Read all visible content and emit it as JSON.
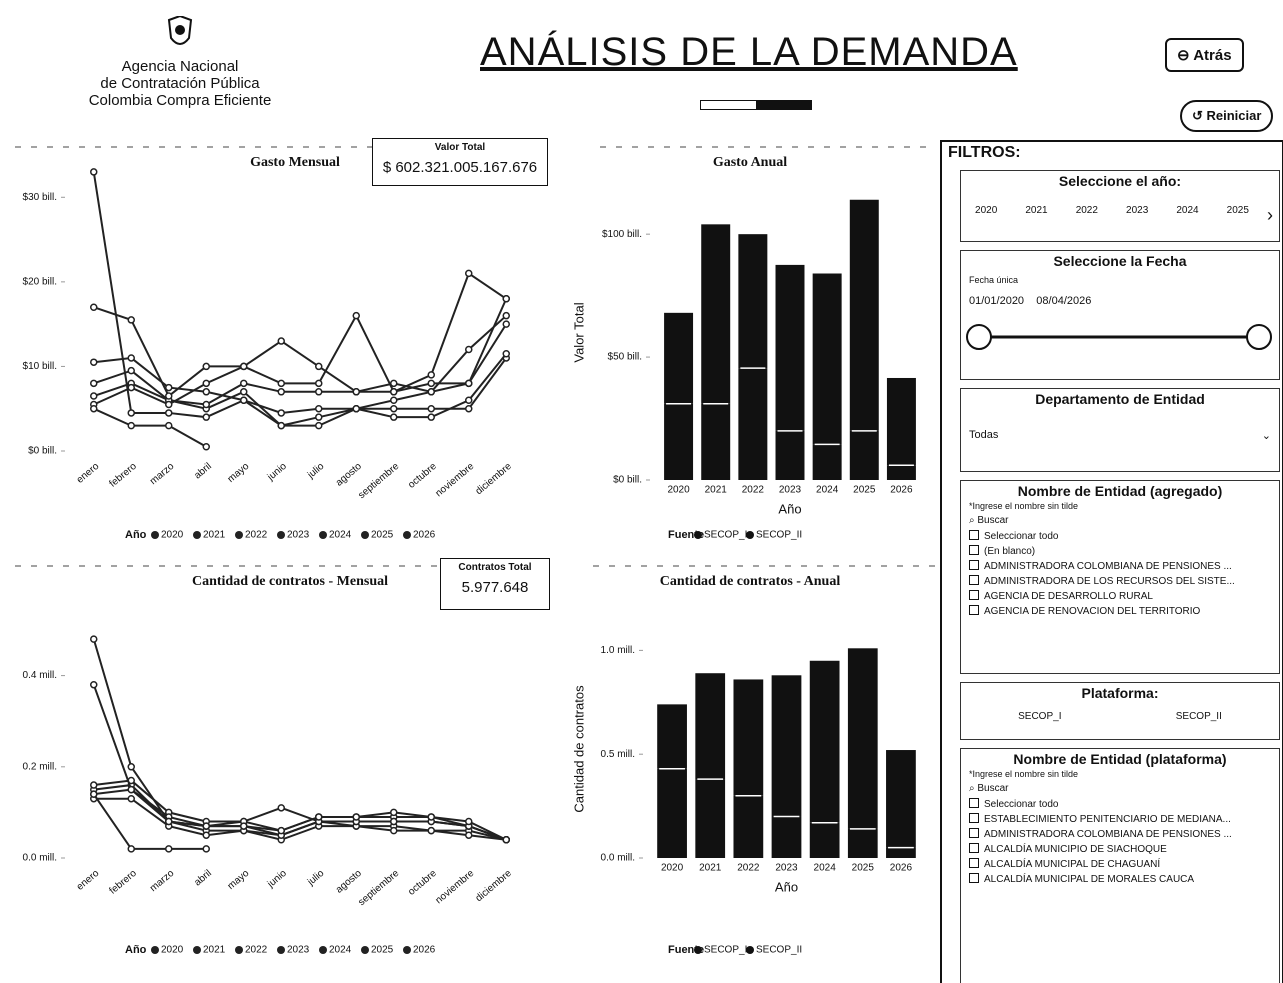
{
  "header": {
    "logo_lines": [
      "Agencia Nacional",
      "de Contratación Pública",
      "Colombia Compra Eficiente"
    ],
    "title": "ANÁLISIS DE LA DEMANDA",
    "back_button": "Atrás",
    "reset_button": "Reiniciar"
  },
  "cards": [
    {
      "label": "Valor Total",
      "value": "$ 602.321.005.167.676"
    },
    {
      "label": "Contratos Total",
      "value": "5.977.648"
    }
  ],
  "chart_data": [
    {
      "type": "line",
      "title": "Gasto Mensual",
      "legend_title": "Año",
      "categories": [
        "enero",
        "febrero",
        "marzo",
        "abril",
        "mayo",
        "junio",
        "julio",
        "agosto",
        "septiembre",
        "octubre",
        "noviembre",
        "diciembre"
      ],
      "series": [
        {
          "name": "2020",
          "color": "#222222",
          "values": [
            6.5,
            8,
            6,
            5,
            7,
            3,
            4,
            5,
            5,
            5,
            5,
            11
          ]
        },
        {
          "name": "2021",
          "color": "#222222",
          "values": [
            33,
            4.5,
            4.5,
            4,
            6,
            3,
            3,
            5,
            4,
            4,
            6,
            11.5
          ]
        },
        {
          "name": "2022",
          "color": "#222222",
          "values": [
            10.5,
            11,
            7.5,
            7,
            6,
            4.5,
            5,
            5,
            6,
            7,
            12,
            16
          ]
        },
        {
          "name": "2023",
          "color": "#222222",
          "values": [
            8,
            9.5,
            6,
            5.5,
            8,
            7,
            7,
            7,
            7,
            8,
            8,
            15
          ]
        },
        {
          "name": "2024",
          "color": "#222222",
          "values": [
            5.5,
            7.5,
            5.5,
            8,
            10,
            8,
            8,
            16,
            7,
            9,
            21,
            18
          ]
        },
        {
          "name": "2025",
          "color": "#222222",
          "values": [
            17,
            15.5,
            6.5,
            10,
            10,
            13,
            10,
            7,
            8,
            7,
            8,
            18
          ]
        },
        {
          "name": "2026",
          "color": "#222222",
          "values": [
            5,
            3,
            3,
            0.5,
            null,
            null,
            null,
            null,
            null,
            null,
            null,
            null
          ]
        }
      ],
      "ylim": [
        0,
        35
      ],
      "yticks": [
        {
          "value": 0,
          "label": "$0 bill."
        },
        {
          "value": 10,
          "label": "$10 bill."
        },
        {
          "value": 20,
          "label": "$20 bill."
        },
        {
          "value": 30,
          "label": "$30 bill."
        }
      ]
    },
    {
      "type": "bar",
      "stacked": true,
      "title": "Gasto Anual",
      "xlabel": "Año",
      "ylabel": "Valor Total",
      "legend_title": "Fuente",
      "categories": [
        "2020",
        "2021",
        "2022",
        "2023",
        "2024",
        "2025",
        "2026"
      ],
      "series": [
        {
          "name": "SECOP_I",
          "color": "#111111",
          "values": [
            31,
            31,
            45.5,
            20,
            14.5,
            20,
            6
          ]
        },
        {
          "name": "SECOP_II",
          "color": "#111111",
          "values": [
            37,
            73,
            54.5,
            67.5,
            69.5,
            94,
            35.5
          ]
        }
      ],
      "ylim": [
        0,
        120
      ],
      "yticks": [
        {
          "value": 0,
          "label": "$0 bill."
        },
        {
          "value": 50,
          "label": "$50 bill."
        },
        {
          "value": 100,
          "label": "$100 bill."
        }
      ]
    },
    {
      "type": "line",
      "title": "Cantidad de contratos - Mensual",
      "legend_title": "Año",
      "categories": [
        "enero",
        "febrero",
        "marzo",
        "abril",
        "mayo",
        "junio",
        "julio",
        "agosto",
        "septiembre",
        "octubre",
        "noviembre",
        "diciembre"
      ],
      "series": [
        {
          "name": "2020",
          "color": "#222222",
          "values": [
            0.15,
            0.16,
            0.08,
            0.06,
            0.06,
            0.05,
            0.08,
            0.07,
            0.07,
            0.06,
            0.06,
            0.04
          ]
        },
        {
          "name": "2021",
          "color": "#222222",
          "values": [
            0.13,
            0.13,
            0.07,
            0.05,
            0.06,
            0.04,
            0.07,
            0.07,
            0.06,
            0.06,
            0.05,
            0.04
          ]
        },
        {
          "name": "2022",
          "color": "#222222",
          "values": [
            0.16,
            0.17,
            0.1,
            0.08,
            0.08,
            0.06,
            0.09,
            0.09,
            0.09,
            0.09,
            0.07,
            0.04
          ]
        },
        {
          "name": "2023",
          "color": "#222222",
          "values": [
            0.14,
            0.15,
            0.09,
            0.07,
            0.07,
            0.05,
            0.08,
            0.08,
            0.08,
            0.08,
            0.07,
            0.04
          ]
        },
        {
          "name": "2024",
          "color": "#222222",
          "values": [
            0.38,
            0.15,
            0.08,
            0.07,
            0.08,
            0.11,
            0.08,
            0.08,
            0.08,
            0.08,
            0.07,
            0.04
          ]
        },
        {
          "name": "2025",
          "color": "#222222",
          "values": [
            0.48,
            0.2,
            0.08,
            0.07,
            0.07,
            0.06,
            0.09,
            0.09,
            0.1,
            0.09,
            0.08,
            0.04
          ]
        },
        {
          "name": "2026",
          "color": "#222222",
          "values": [
            0.14,
            0.02,
            0.02,
            0.02,
            null,
            null,
            null,
            null,
            null,
            null,
            null,
            null
          ]
        }
      ],
      "ylim": [
        0,
        0.5
      ],
      "yticks": [
        {
          "value": 0,
          "label": "0.0 mill."
        },
        {
          "value": 0.2,
          "label": "0.2 mill."
        },
        {
          "value": 0.4,
          "label": "0.4 mill."
        }
      ]
    },
    {
      "type": "bar",
      "stacked": true,
      "title": "Cantidad de contratos - Anual",
      "xlabel": "Año",
      "ylabel": "Cantidad de contratos",
      "legend_title": "Fuente",
      "categories": [
        "2020",
        "2021",
        "2022",
        "2023",
        "2024",
        "2025",
        "2026"
      ],
      "series": [
        {
          "name": "SECOP_I",
          "color": "#111111",
          "values": [
            0.43,
            0.38,
            0.3,
            0.2,
            0.17,
            0.14,
            0.05
          ]
        },
        {
          "name": "SECOP_II",
          "color": "#111111",
          "values": [
            0.31,
            0.51,
            0.56,
            0.68,
            0.78,
            0.87,
            0.47
          ]
        }
      ],
      "ylim": [
        0,
        1.05
      ],
      "yticks": [
        {
          "value": 0,
          "label": "0.0 mill."
        },
        {
          "value": 0.5,
          "label": "0.5 mill."
        },
        {
          "value": 1,
          "label": "1.0 mill."
        }
      ]
    }
  ],
  "filters": {
    "title": "FILTROS:",
    "year": {
      "title": "Seleccione el año:",
      "options": [
        "2020",
        "2021",
        "2022",
        "2023",
        "2024",
        "2025"
      ]
    },
    "date": {
      "title": "Seleccione la Fecha",
      "label": "Fecha única",
      "start": "01/01/2020",
      "end": "08/04/2026"
    },
    "department": {
      "title": "Departamento de Entidad",
      "value": "Todas"
    },
    "entity_aggregate": {
      "title": "Nombre de Entidad (agregado)",
      "hint": "*Ingrese el nombre sin tilde",
      "search": "Buscar",
      "items": [
        "Seleccionar todo",
        "(En blanco)",
        "ADMINISTRADORA COLOMBIANA DE PENSIONES ...",
        "ADMINISTRADORA DE LOS RECURSOS DEL SISTE...",
        "AGENCIA DE DESARROLLO RURAL",
        "AGENCIA DE RENOVACION DEL TERRITORIO"
      ]
    },
    "platform": {
      "title": "Plataforma:",
      "options": [
        "SECOP_I",
        "SECOP_II"
      ]
    },
    "entity_platform": {
      "title": "Nombre de Entidad (plataforma)",
      "hint": "*Ingrese el nombre sin tilde",
      "search": "Buscar",
      "items": [
        "Seleccionar todo",
        "ESTABLECIMIENTO PENITENCIARIO DE MEDIANA...",
        "ADMINISTRADORA COLOMBIANA DE PENSIONES ...",
        "ALCALDÍA MUNICIPIO DE SIACHOQUE",
        "ALCALDÍA MUNICIPAL DE CHAGUANÍ",
        "ALCALDÍA MUNICIPAL DE MORALES CAUCA"
      ]
    }
  }
}
